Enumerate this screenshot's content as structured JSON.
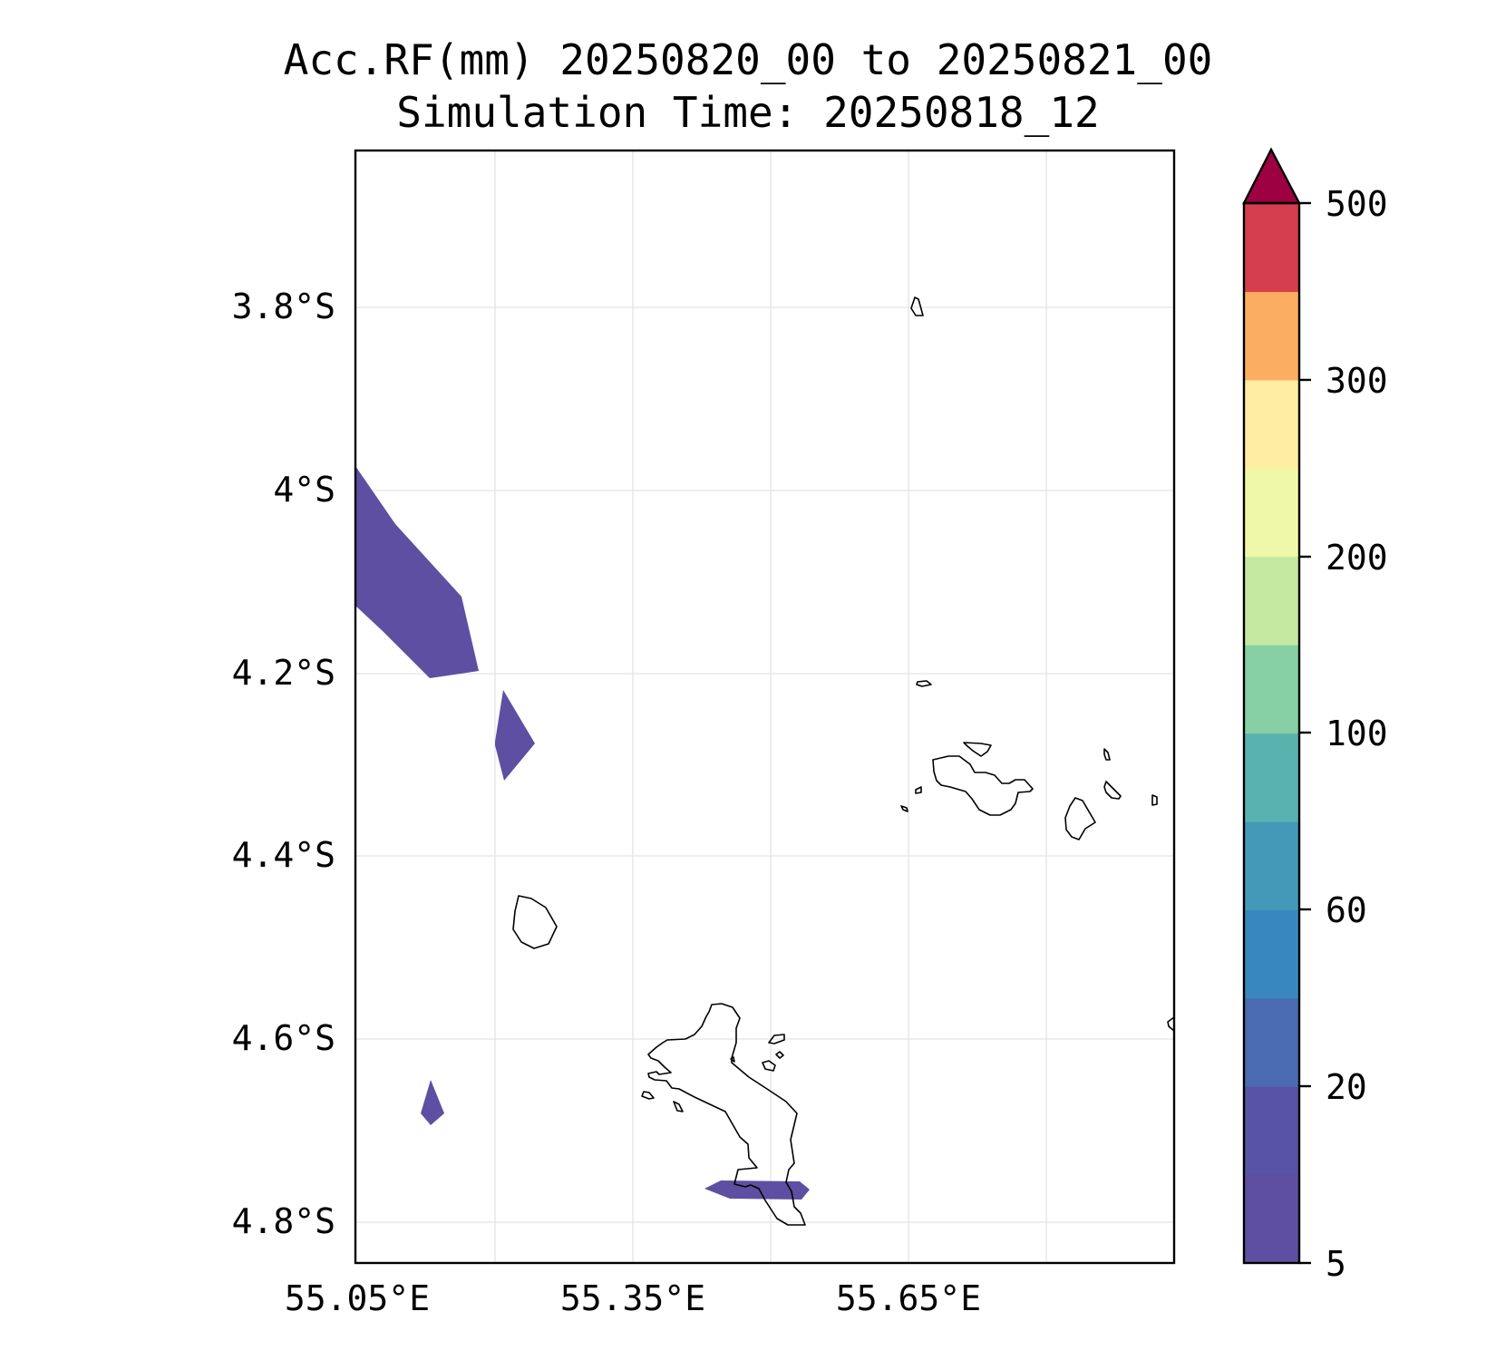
{
  "title": {
    "line1": "Acc.RF(mm) 20250820_00 to 20250821_00",
    "line2": "Simulation Time: 20250818_12"
  },
  "map": {
    "lon_ticks": [
      "55.05°E",
      "55.35°E",
      "55.65°E"
    ],
    "lat_ticks": [
      "3.8°S",
      "4°S",
      "4.2°S",
      "4.4°S",
      "4.6°S",
      "4.8°S"
    ],
    "grid": true,
    "rain_fill_color": "#5e4fa2",
    "coastline_color": "#000000"
  },
  "colorbar": {
    "tick_labels": [
      "500",
      "300",
      "200",
      "100",
      "60",
      "20",
      "5"
    ],
    "extend": "max",
    "colors_bottom_to_top": [
      "#5e4fa2",
      "#5853a6",
      "#4a6bb0",
      "#3888be",
      "#4499b8",
      "#5ab2ae",
      "#87cfa4",
      "#c5e8a0",
      "#eff8a8",
      "#feeda3",
      "#fbad62",
      "#d53e4f"
    ],
    "extend_color": "#9e0142"
  }
}
